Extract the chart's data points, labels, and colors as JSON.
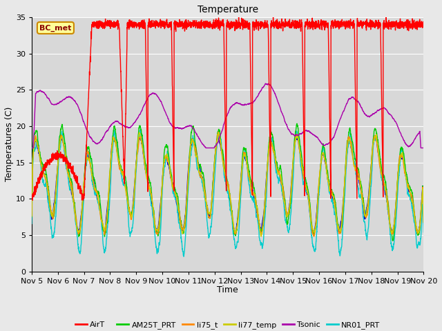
{
  "title": "Temperature",
  "xlabel": "Time",
  "ylabel": "Temperatures (C)",
  "ylim": [
    0,
    35
  ],
  "xlim": [
    0,
    15
  ],
  "fig_bg_color": "#e8e8e8",
  "plot_bg_color": "#d8d8d8",
  "grid_color": "#ffffff",
  "annotation_text": "BC_met",
  "annotation_bg": "#ffff99",
  "annotation_border": "#cc8800",
  "xtick_labels": [
    "Nov 5",
    "Nov 6",
    "Nov 7",
    "Nov 8",
    "Nov 9",
    "Nov 10",
    "Nov 11",
    "Nov 12",
    "Nov 13",
    "Nov 14",
    "Nov 15",
    "Nov 16",
    "Nov 17",
    "Nov 18",
    "Nov 19",
    "Nov 20"
  ],
  "legend": [
    {
      "label": "AirT",
      "color": "#ff0000"
    },
    {
      "label": "li75_t",
      "color": "#0000cc"
    },
    {
      "label": "AM25T_PRT",
      "color": "#00cc00"
    },
    {
      "label": "li75_t",
      "color": "#ff8800"
    },
    {
      "label": "li77_temp",
      "color": "#cccc00"
    },
    {
      "label": "Tsonic",
      "color": "#aa00aa"
    },
    {
      "label": "NR01_PRT",
      "color": "#00cccc"
    }
  ]
}
